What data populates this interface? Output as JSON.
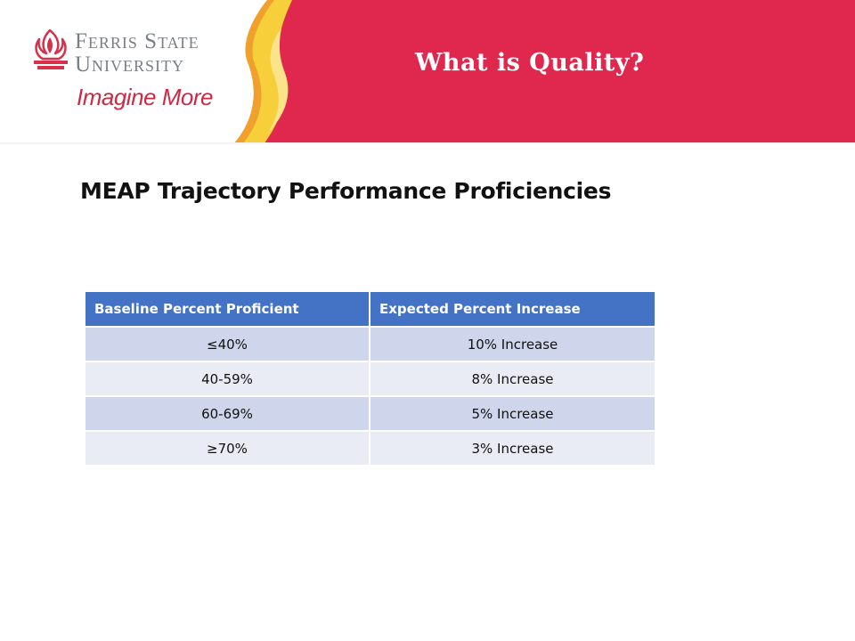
{
  "header": {
    "logo": {
      "line1": "Ferris State",
      "line2": "University",
      "tagline": "Imagine More"
    },
    "title": "What is Quality?"
  },
  "slide": {
    "title": "MEAP Trajectory Performance Proficiencies"
  },
  "table": {
    "columns": [
      "Baseline Percent Proficient",
      "Expected Percent Increase"
    ],
    "rows": [
      [
        "≤40%",
        "10% Increase"
      ],
      [
        "40-59%",
        "8% Increase"
      ],
      [
        "60-69%",
        "5% Increase"
      ],
      [
        "≥70%",
        "3% Increase"
      ]
    ]
  },
  "colors": {
    "banner_red": "#e0284f",
    "flame_yellow": "#f6cf3a",
    "flame_orange": "#f0a02c",
    "table_header": "#4472c4",
    "row_dark": "#cfd5ea",
    "row_light": "#e9ebf5"
  }
}
